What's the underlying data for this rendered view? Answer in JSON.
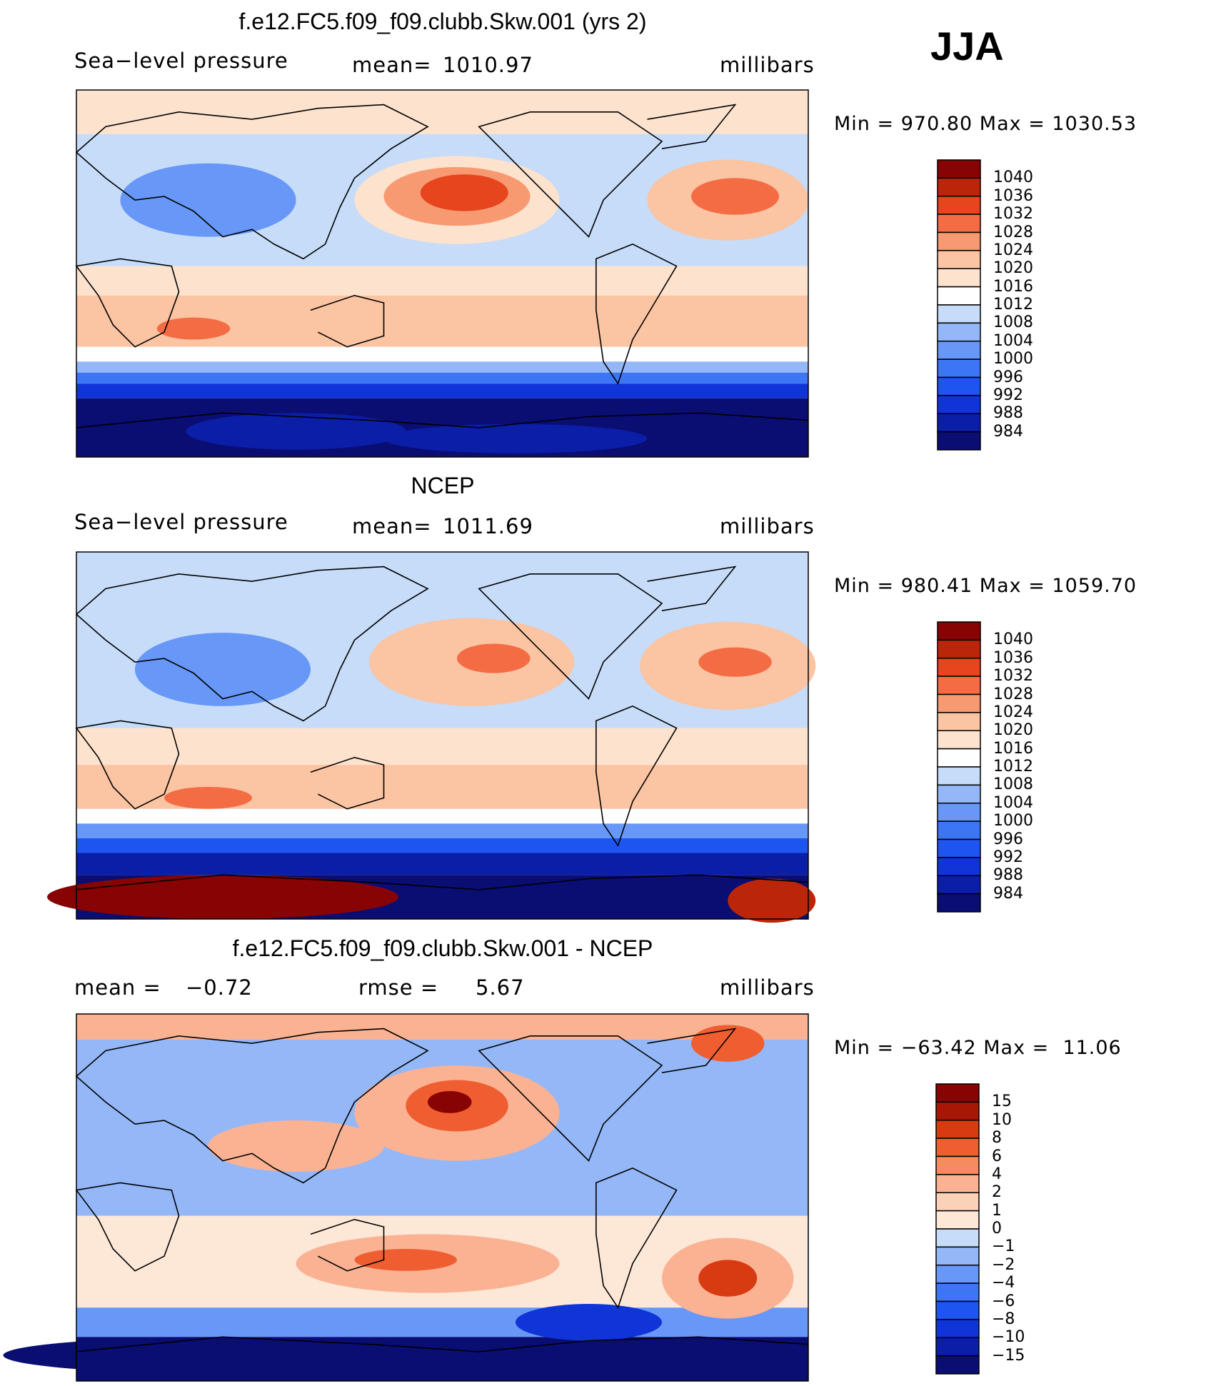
{
  "season": "JJA",
  "colors": {
    "abs_scale": [
      "#0a0d72",
      "#0b1ea8",
      "#0f35d8",
      "#1e55f0",
      "#3c76f5",
      "#6797f7",
      "#94b7f7",
      "#c6dcf8",
      "#ffffff",
      "#fde2ce",
      "#fbc4a3",
      "#f79a72",
      "#f46c43",
      "#e6451d",
      "#bb250a",
      "#870304"
    ],
    "diff_scale": [
      "#0a0d72",
      "#0b1ea8",
      "#0f35d8",
      "#1e55f0",
      "#3c76f5",
      "#6797f7",
      "#94b7f7",
      "#c6dcf8",
      "#e8eff9",
      "#fde8d8",
      "#fbd2b8",
      "#fbb293",
      "#f68a61",
      "#ef5e31",
      "#d83a12",
      "#a81706",
      "#870304"
    ],
    "land": "#000000"
  },
  "chart_data": [
    {
      "type": "heatmap",
      "title": "f.e12.FC5.f09_f09.clubb.Skw.001 (yrs 2)",
      "field": "Sea−level pressure",
      "mean_label": "mean=",
      "mean": "1010.97",
      "units": "millibars",
      "min_label": "Min",
      "min": "970.80",
      "max_label": "Max",
      "max": "1030.53",
      "levels": [
        "1040",
        "1036",
        "1032",
        "1028",
        "1024",
        "1020",
        "1016",
        "1012",
        "1008",
        "1004",
        "1000",
        "996",
        "992",
        "988",
        "984"
      ]
    },
    {
      "type": "heatmap",
      "title": "NCEP",
      "field": "Sea−level pressure",
      "mean_label": "mean=",
      "mean": "1011.69",
      "units": "millibars",
      "min_label": "Min",
      "min": "980.41",
      "max_label": "Max",
      "max": "1059.70",
      "levels": [
        "1040",
        "1036",
        "1032",
        "1028",
        "1024",
        "1020",
        "1016",
        "1012",
        "1008",
        "1004",
        "1000",
        "996",
        "992",
        "988",
        "984"
      ]
    },
    {
      "type": "heatmap",
      "title": "f.e12.FC5.f09_f09.clubb.Skw.001 - NCEP",
      "mean_label": "mean =",
      "mean": "−0.72",
      "rmse_label": "rmse =",
      "rmse": "5.67",
      "units": "millibars",
      "min_label": "Min",
      "min": "−63.42",
      "max_label": "Max",
      "max": "11.06",
      "levels": [
        "15",
        "10",
        "8",
        "6",
        "4",
        "2",
        "1",
        "0",
        "−1",
        "−2",
        "−4",
        "−6",
        "−8",
        "−10",
        "−15"
      ]
    }
  ]
}
